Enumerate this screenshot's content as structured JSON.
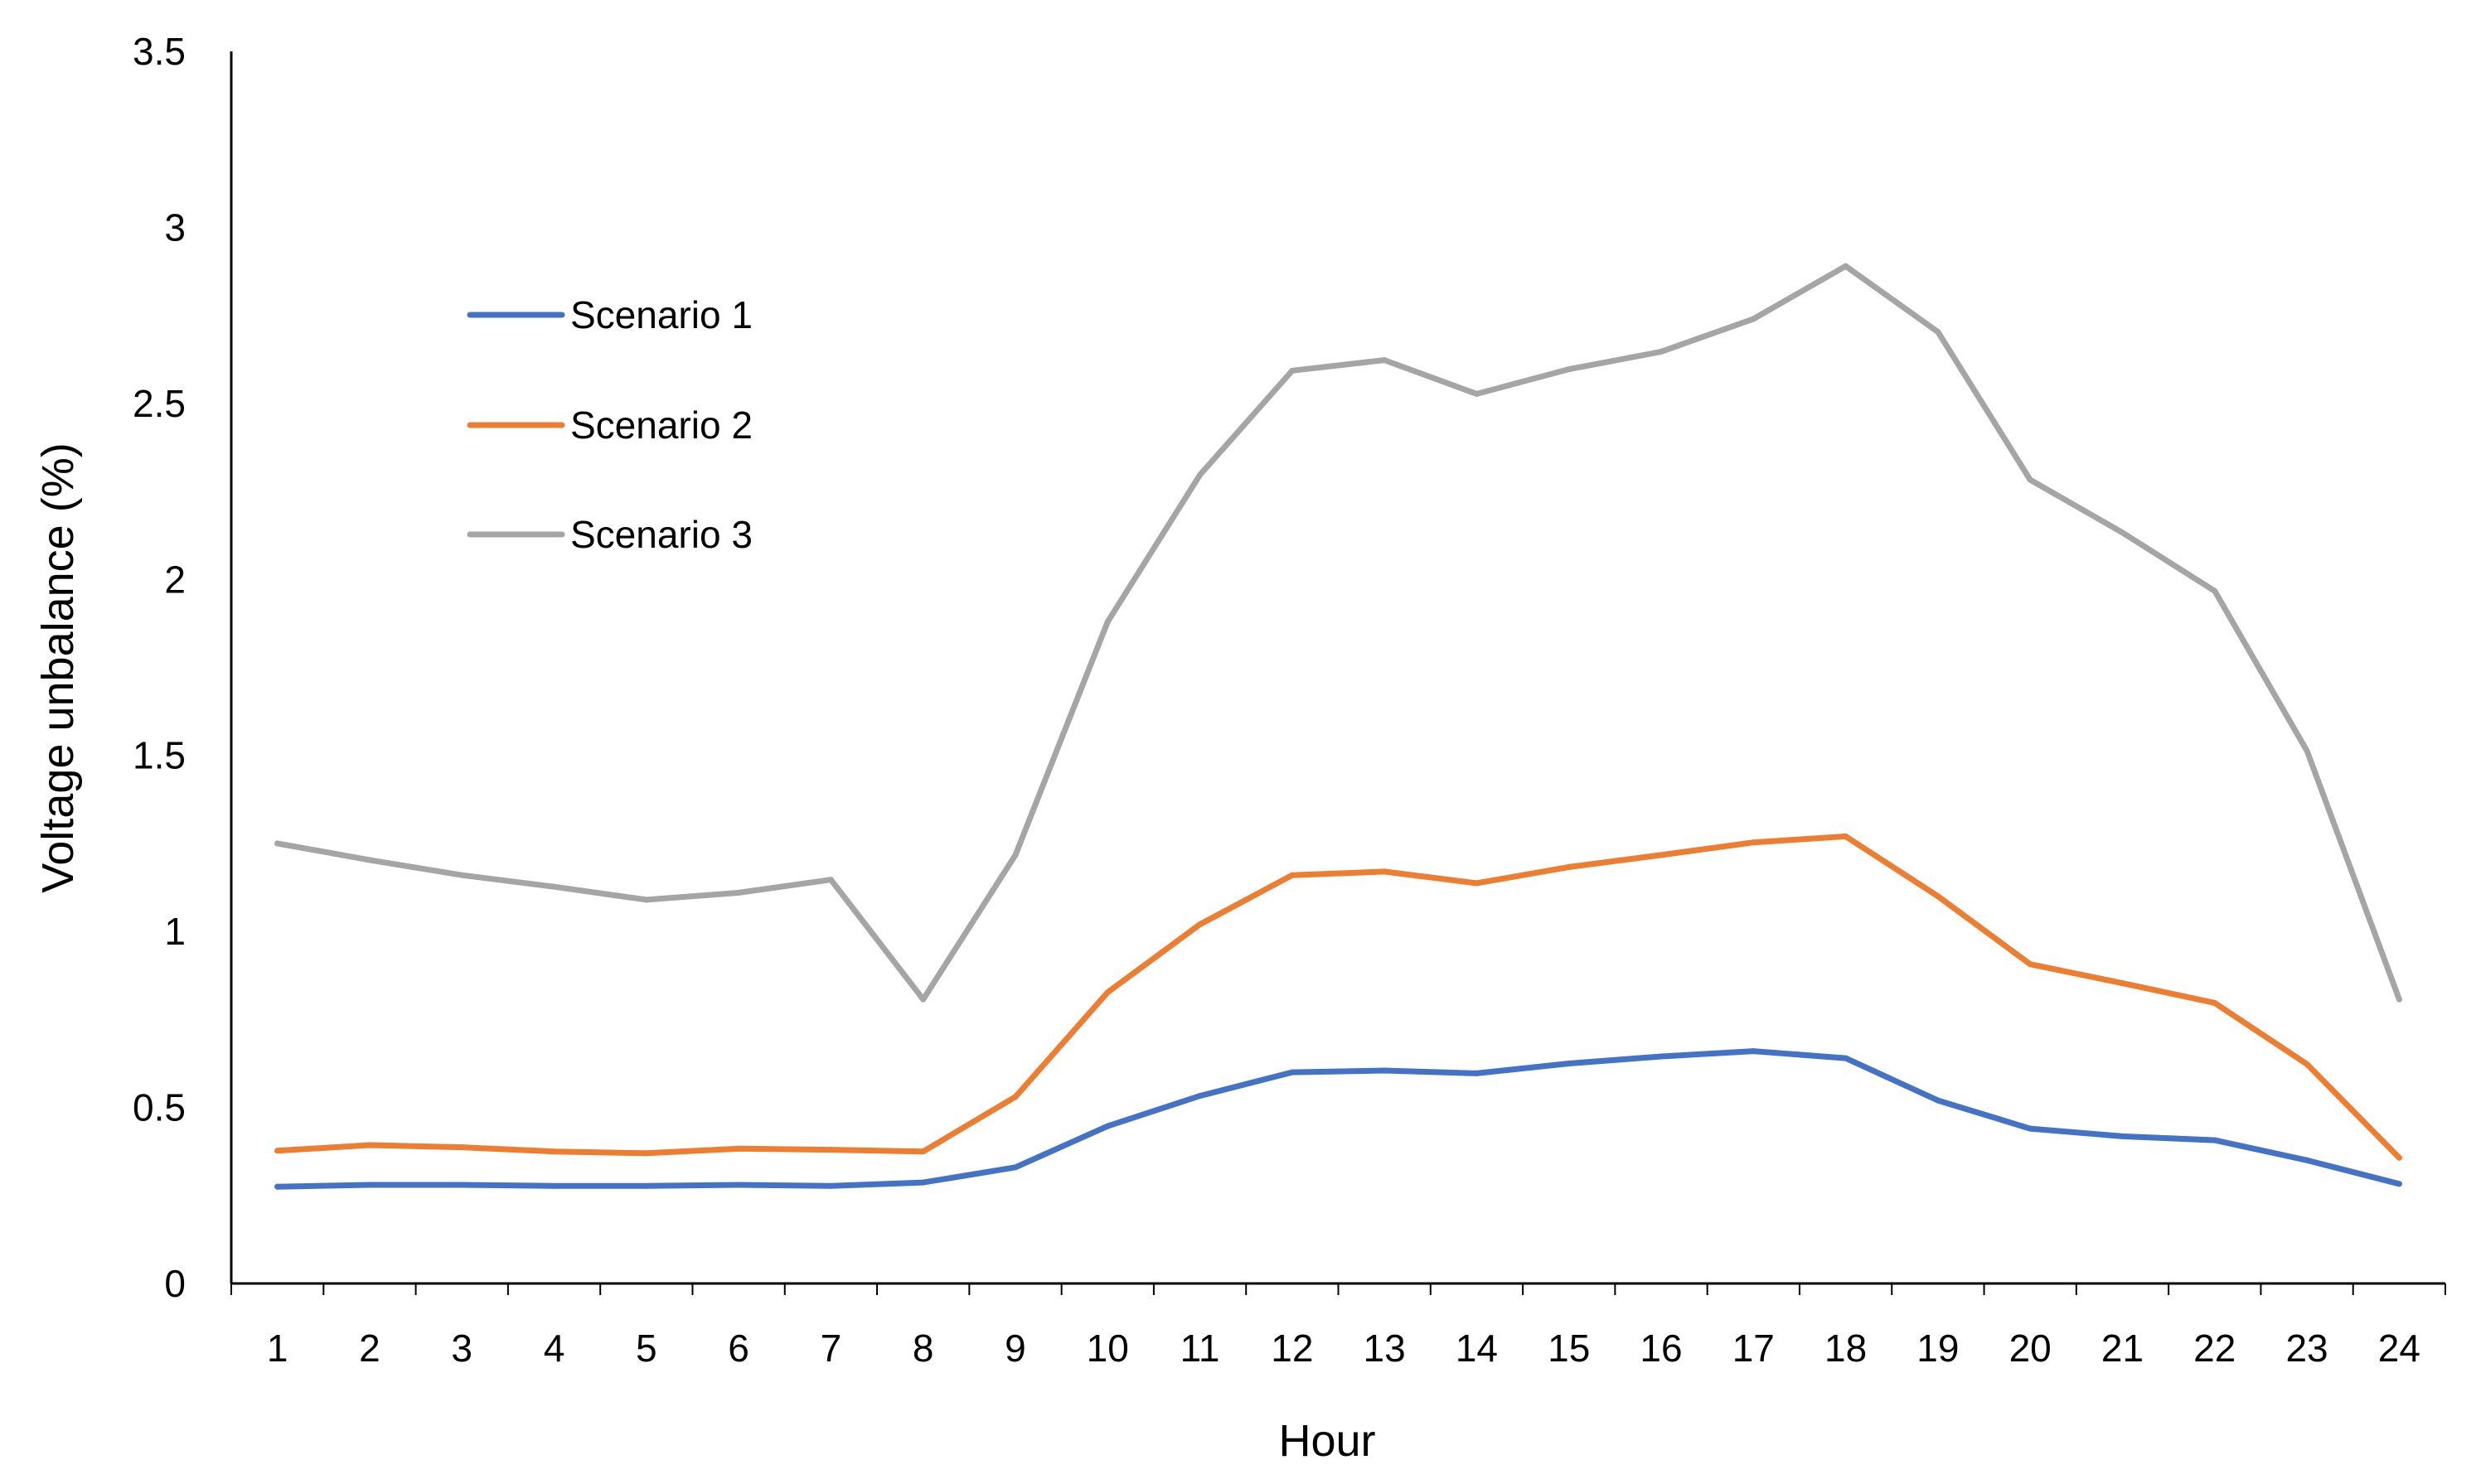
{
  "chart_data": {
    "type": "line",
    "title": "",
    "xlabel": "Hour",
    "ylabel": "Voltage unbalance (%)",
    "categories": [
      "1",
      "2",
      "3",
      "4",
      "5",
      "6",
      "7",
      "8",
      "9",
      "10",
      "11",
      "12",
      "13",
      "14",
      "15",
      "16",
      "17",
      "18",
      "19",
      "20",
      "21",
      "22",
      "23",
      "24"
    ],
    "ylim": [
      0,
      3.5
    ],
    "yticks": [
      "0",
      "0.5",
      "1",
      "1.5",
      "2",
      "2.5",
      "3",
      "3.5"
    ],
    "grid": false,
    "legend_position": "top-left",
    "series": [
      {
        "name": "Scenario 1",
        "color": "#4472C4",
        "values": [
          0.275,
          0.28,
          0.28,
          0.277,
          0.277,
          0.28,
          0.277,
          0.287,
          0.33,
          0.447,
          0.533,
          0.6,
          0.605,
          0.597,
          0.625,
          0.645,
          0.66,
          0.64,
          0.52,
          0.44,
          0.418,
          0.407,
          0.35,
          0.283
        ]
      },
      {
        "name": "Scenario 2",
        "color": "#ED7D31",
        "values": [
          0.377,
          0.393,
          0.387,
          0.375,
          0.37,
          0.383,
          0.38,
          0.375,
          0.53,
          0.827,
          1.02,
          1.16,
          1.17,
          1.137,
          1.183,
          1.217,
          1.253,
          1.27,
          1.1,
          0.907,
          0.853,
          0.797,
          0.623,
          0.357
        ]
      },
      {
        "name": "Scenario 3",
        "color": "#A5A5A5",
        "values": [
          1.25,
          1.203,
          1.16,
          1.127,
          1.09,
          1.11,
          1.147,
          0.807,
          1.217,
          1.88,
          2.297,
          2.593,
          2.623,
          2.527,
          2.597,
          2.647,
          2.74,
          2.89,
          2.703,
          2.283,
          2.133,
          1.967,
          1.513,
          0.807
        ]
      }
    ]
  }
}
